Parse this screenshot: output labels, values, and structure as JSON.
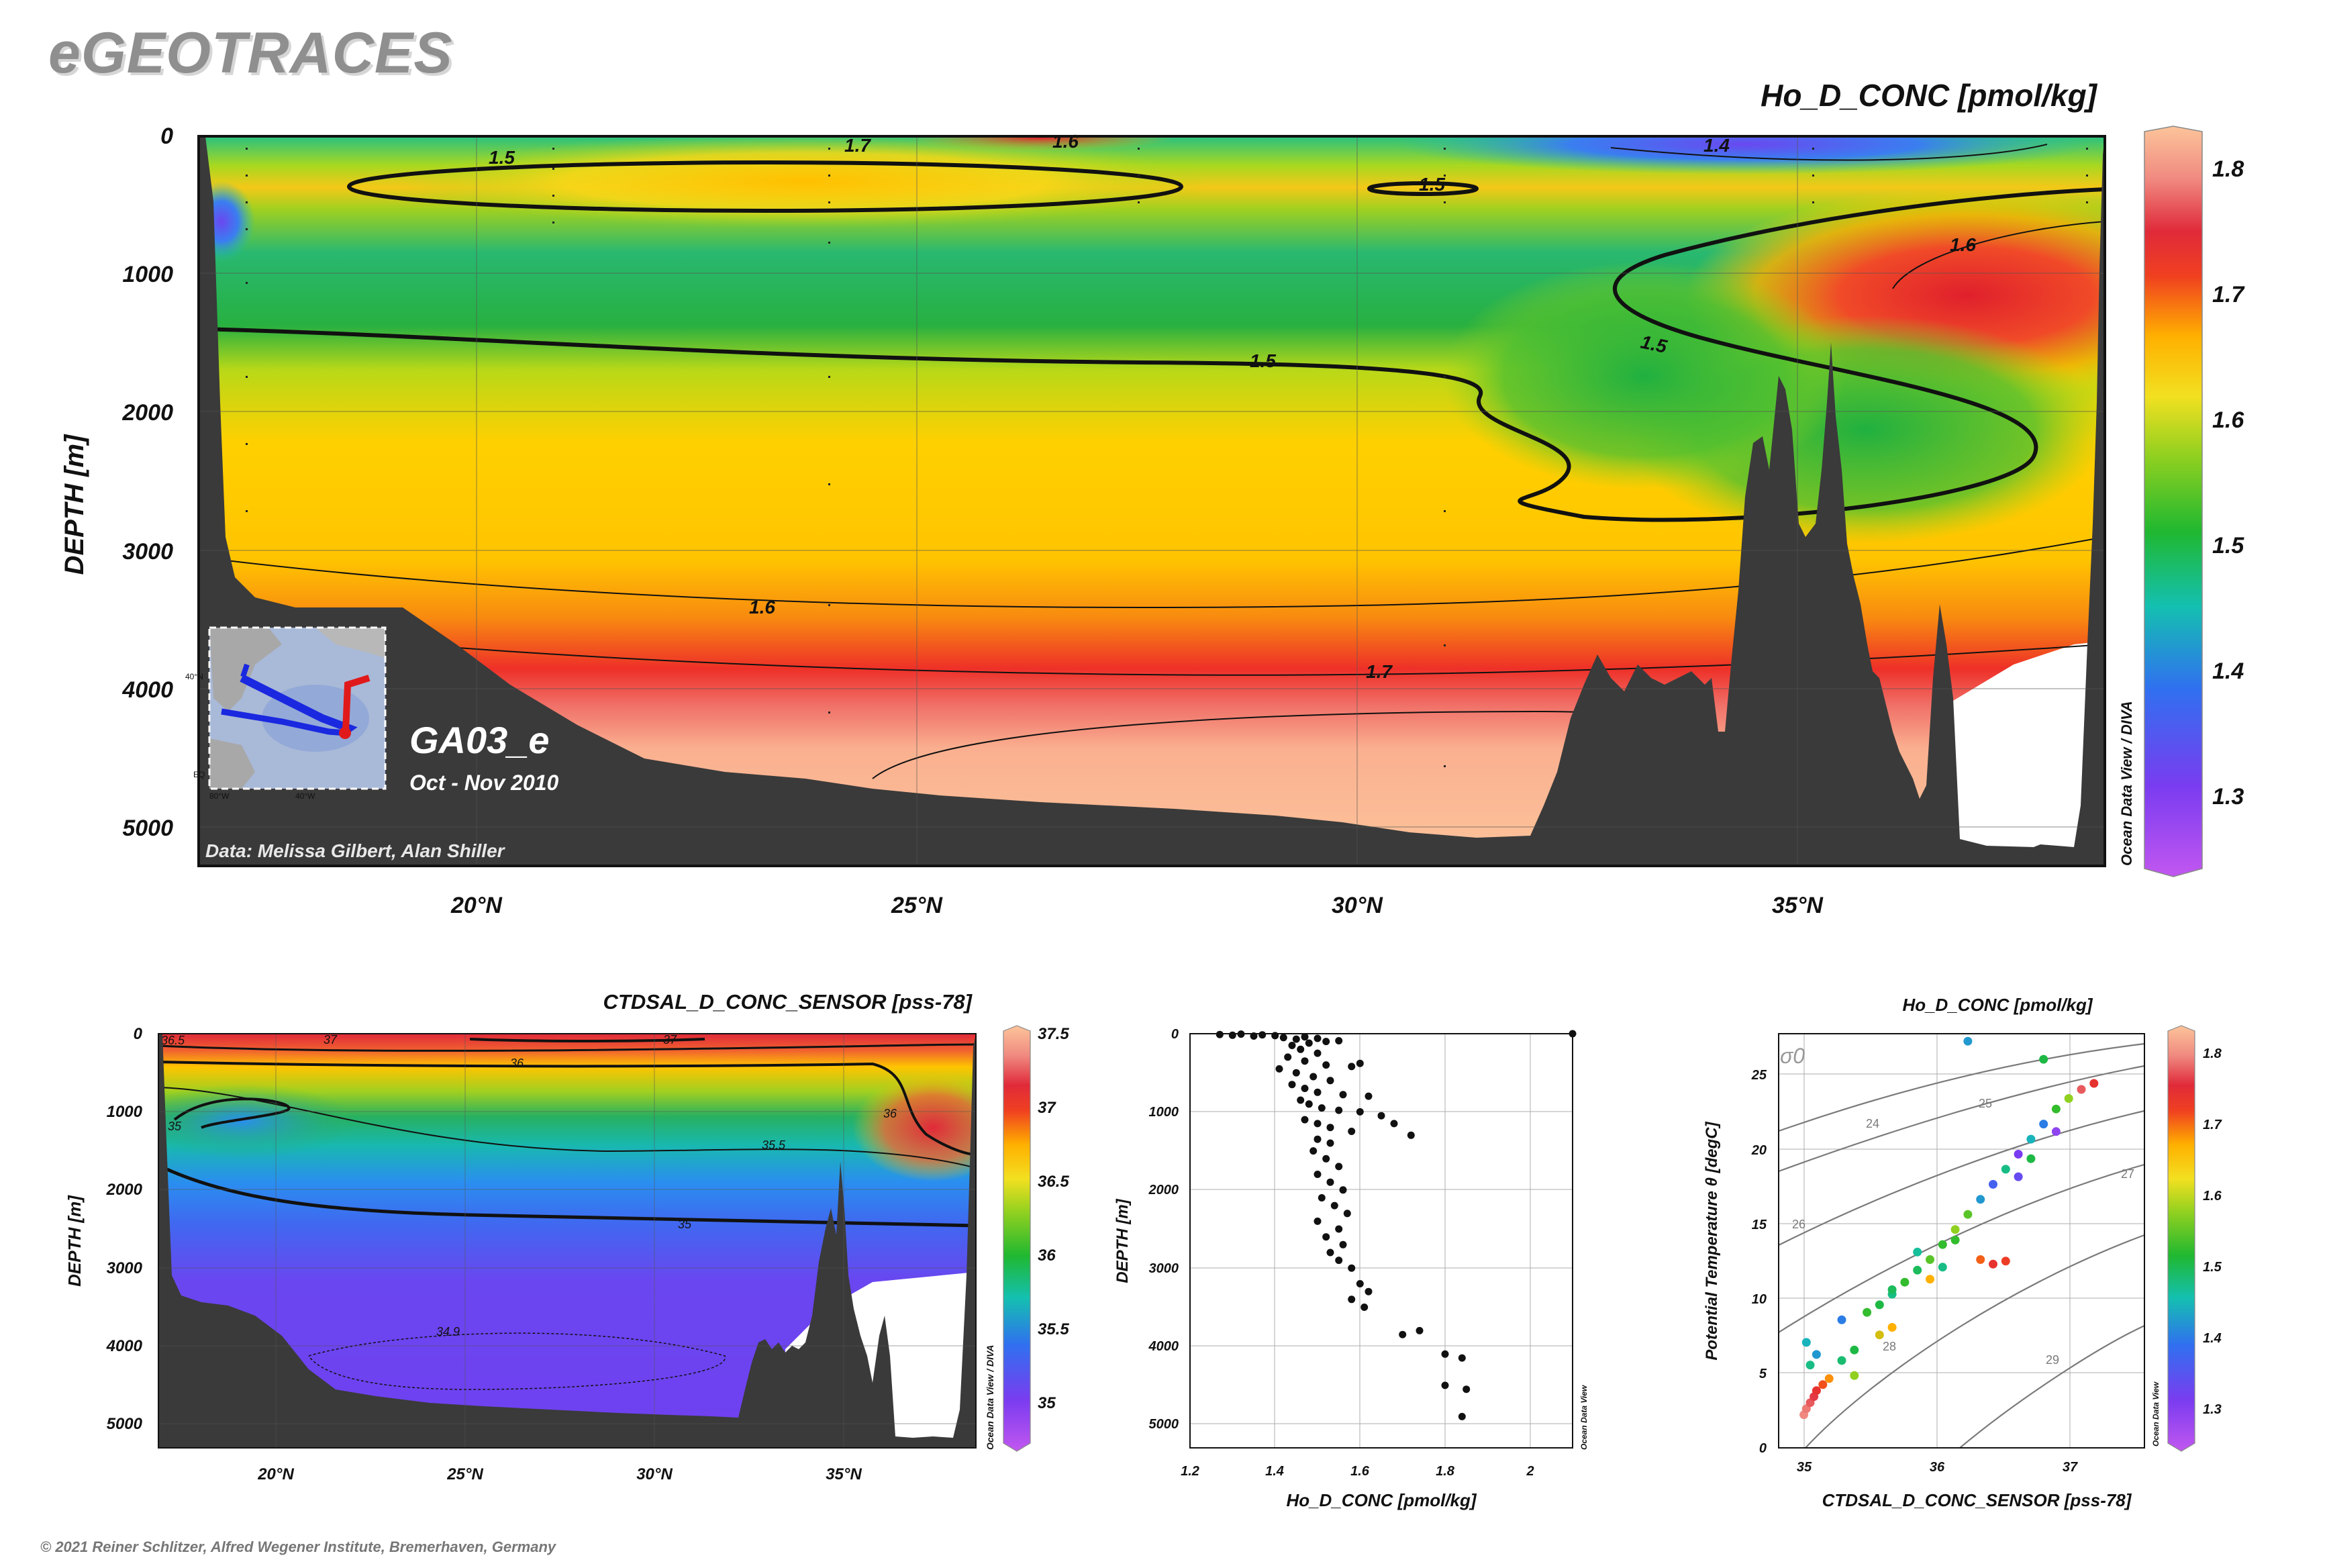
{
  "branding": {
    "logo": "eGEOTRACES",
    "copyright": "© 2021 Reiner Schlitzer, Alfred Wegener Institute, Bremerhaven, Germany"
  },
  "main_section": {
    "variable_label": "Ho_D_CONC [pmol/kg]",
    "ylabel": "DEPTH [m]",
    "y_ticks": [
      "0",
      "1000",
      "2000",
      "3000",
      "4000",
      "5000"
    ],
    "x_ticks": [
      "20°N",
      "25°N",
      "30°N",
      "35°N"
    ],
    "cruise": "GA03_e",
    "dates": "Oct - Nov 2010",
    "credit": "Data: Melissa Gilbert, Alan Shiller",
    "odv_credit": "Ocean Data View / DIVA",
    "colorbar_ticks": [
      "1.8",
      "1.7",
      "1.6",
      "1.5",
      "1.4",
      "1.3"
    ],
    "contour_labels": [
      "1.5",
      "1.7",
      "1.6",
      "1.4",
      "1.5",
      "1.6",
      "1.5",
      "1.5",
      "1.6",
      "1.7"
    ],
    "map_labels": {
      "lat": "40°N",
      "lat2": "EQ",
      "lon1": "80°W",
      "lon2": "40°W"
    }
  },
  "sal_section": {
    "variable_label": "CTDSAL_D_CONC_SENSOR [pss-78]",
    "ylabel": "DEPTH [m]",
    "y_ticks": [
      "0",
      "1000",
      "2000",
      "3000",
      "4000",
      "5000"
    ],
    "x_ticks": [
      "20°N",
      "25°N",
      "30°N",
      "35°N"
    ],
    "colorbar_ticks": [
      "37.5",
      "37",
      "36.5",
      "36",
      "35.5",
      "35"
    ],
    "contour_labels": [
      "36.5",
      "37",
      "37",
      "36",
      "36",
      "35",
      "35.5",
      "35",
      "34.9"
    ],
    "odv_credit": "Ocean Data View / DIVA"
  },
  "profile_plot": {
    "xlabel": "Ho_D_CONC [pmol/kg]",
    "ylabel": "DEPTH [m]",
    "x_ticks": [
      "1.2",
      "1.4",
      "1.6",
      "1.8",
      "2"
    ],
    "y_ticks": [
      "0",
      "1000",
      "2000",
      "3000",
      "4000",
      "5000"
    ],
    "odv_credit": "Ocean Data View"
  },
  "ts_plot": {
    "title": "Ho_D_CONC [pmol/kg]",
    "xlabel": "CTDSAL_D_CONC_SENSOR [pss-78]",
    "ylabel": "Potential Temperature θ [degC]",
    "x_ticks": [
      "35",
      "36",
      "37"
    ],
    "y_ticks": [
      "0",
      "5",
      "10",
      "15",
      "20",
      "25"
    ],
    "sigma_label": "σ0",
    "isopycnal_labels": [
      "24",
      "25",
      "26",
      "27",
      "28",
      "29"
    ],
    "colorbar_ticks": [
      "1.8",
      "1.7",
      "1.6",
      "1.5",
      "1.4",
      "1.3"
    ],
    "odv_credit": "Ocean Data View"
  },
  "chart_data": [
    {
      "type": "heatmap",
      "title": "Ho_D_CONC [pmol/kg]",
      "xlabel": "",
      "ylabel": "DEPTH [m]",
      "xlim": [
        16.8,
        38.5
      ],
      "ylim": [
        5300,
        0
      ],
      "colorbar_range": [
        1.23,
        1.83
      ],
      "contour_levels": [
        1.4,
        1.5,
        1.6,
        1.7
      ],
      "description_levels": [
        {
          "depth": 0,
          "value": 1.35
        },
        {
          "depth": 200,
          "value": 1.5
        },
        {
          "depth": 800,
          "value": 1.43
        },
        {
          "depth": 1500,
          "value": 1.47
        },
        {
          "depth": 2500,
          "value": 1.55
        },
        {
          "depth": 3300,
          "value": 1.6
        },
        {
          "depth": 3800,
          "value": 1.68
        },
        {
          "depth": 4500,
          "value": 1.79
        }
      ],
      "station_latitudes": [
        17.5,
        21,
        24,
        27.5,
        31,
        35.2,
        38.2
      ]
    },
    {
      "type": "heatmap",
      "title": "CTDSAL_D_CONC_SENSOR [pss-78]",
      "xlabel": "",
      "ylabel": "DEPTH [m]",
      "xlim": [
        16.8,
        38.5
      ],
      "ylim": [
        5300,
        0
      ],
      "colorbar_range": [
        34.8,
        37.5
      ],
      "contour_levels": [
        34.9,
        35,
        35.5,
        36,
        36.5,
        37
      ]
    },
    {
      "type": "scatter",
      "xlabel": "Ho_D_CONC [pmol/kg]",
      "ylabel": "DEPTH [m]",
      "xlim": [
        1.2,
        2.1
      ],
      "ylim": [
        5300,
        0
      ],
      "points": [
        [
          1.27,
          10
        ],
        [
          1.3,
          20
        ],
        [
          1.32,
          5
        ],
        [
          1.35,
          30
        ],
        [
          1.37,
          15
        ],
        [
          1.4,
          25
        ],
        [
          1.42,
          50
        ],
        [
          1.45,
          70
        ],
        [
          1.47,
          40
        ],
        [
          1.5,
          60
        ],
        [
          1.52,
          100
        ],
        [
          1.55,
          90
        ],
        [
          1.48,
          120
        ],
        [
          1.44,
          150
        ],
        [
          1.46,
          200
        ],
        [
          1.5,
          250
        ],
        [
          1.43,
          300
        ],
        [
          1.47,
          350
        ],
        [
          1.52,
          400
        ],
        [
          1.58,
          420
        ],
        [
          1.6,
          380
        ],
        [
          1.41,
          450
        ],
        [
          1.45,
          500
        ],
        [
          1.49,
          550
        ],
        [
          1.53,
          600
        ],
        [
          1.44,
          650
        ],
        [
          1.47,
          700
        ],
        [
          1.5,
          750
        ],
        [
          1.56,
          780
        ],
        [
          1.62,
          800
        ],
        [
          1.46,
          850
        ],
        [
          1.48,
          900
        ],
        [
          1.51,
          950
        ],
        [
          1.55,
          980
        ],
        [
          1.6,
          1000
        ],
        [
          1.65,
          1050
        ],
        [
          1.47,
          1100
        ],
        [
          1.5,
          1150
        ],
        [
          1.53,
          1200
        ],
        [
          1.58,
          1250
        ],
        [
          1.68,
          1150
        ],
        [
          1.72,
          1300
        ],
        [
          1.5,
          1350
        ],
        [
          1.53,
          1400
        ],
        [
          1.49,
          1500
        ],
        [
          1.52,
          1600
        ],
        [
          1.55,
          1700
        ],
        [
          1.5,
          1800
        ],
        [
          1.53,
          1900
        ],
        [
          1.56,
          2000
        ],
        [
          1.51,
          2100
        ],
        [
          1.54,
          2200
        ],
        [
          1.57,
          2300
        ],
        [
          1.5,
          2400
        ],
        [
          1.55,
          2500
        ],
        [
          1.52,
          2600
        ],
        [
          1.56,
          2700
        ],
        [
          1.53,
          2800
        ],
        [
          1.55,
          2900
        ],
        [
          1.58,
          3000
        ],
        [
          1.6,
          3200
        ],
        [
          1.62,
          3300
        ],
        [
          1.58,
          3400
        ],
        [
          1.61,
          3500
        ],
        [
          1.7,
          3850
        ],
        [
          1.74,
          3800
        ],
        [
          1.8,
          4100
        ],
        [
          1.84,
          4150
        ],
        [
          1.8,
          4500
        ],
        [
          1.85,
          4550
        ],
        [
          1.84,
          4900
        ],
        [
          2.1,
          0
        ]
      ]
    },
    {
      "type": "scatter",
      "xlabel": "CTDSAL_D_CONC_SENSOR [pss-78]",
      "ylabel": "Potential Temperature θ [degC]",
      "xlim": [
        34.7,
        37.6
      ],
      "ylim": [
        0,
        27.5
      ],
      "colorbar_range": [
        1.23,
        1.83
      ],
      "points": [
        [
          34.9,
          2.2,
          1.78
        ],
        [
          34.92,
          2.6,
          1.77
        ],
        [
          34.95,
          3.0,
          1.75
        ],
        [
          34.98,
          3.4,
          1.73
        ],
        [
          35.0,
          3.8,
          1.7
        ],
        [
          35.05,
          4.2,
          1.66
        ],
        [
          35.1,
          4.6,
          1.62
        ],
        [
          34.95,
          5.5,
          1.45
        ],
        [
          35.0,
          6.2,
          1.4
        ],
        [
          34.92,
          7.0,
          1.42
        ],
        [
          35.2,
          5.8,
          1.46
        ],
        [
          35.3,
          6.5,
          1.48
        ],
        [
          35.2,
          8.5,
          1.38
        ],
        [
          35.4,
          9.0,
          1.5
        ],
        [
          35.5,
          9.5,
          1.48
        ],
        [
          35.6,
          10.2,
          1.45
        ],
        [
          35.7,
          11.0,
          1.5
        ],
        [
          35.8,
          11.8,
          1.47
        ],
        [
          35.9,
          12.5,
          1.52
        ],
        [
          36.0,
          13.5,
          1.5
        ],
        [
          35.8,
          13.0,
          1.44
        ],
        [
          36.1,
          14.5,
          1.55
        ],
        [
          36.2,
          15.5,
          1.52
        ],
        [
          36.3,
          16.5,
          1.4
        ],
        [
          36.4,
          17.5,
          1.35
        ],
        [
          36.5,
          18.5,
          1.45
        ],
        [
          36.6,
          19.5,
          1.3
        ],
        [
          36.7,
          20.5,
          1.42
        ],
        [
          36.8,
          21.5,
          1.38
        ],
        [
          36.9,
          22.5,
          1.5
        ],
        [
          37.0,
          23.2,
          1.55
        ],
        [
          37.2,
          24.2,
          1.7
        ],
        [
          36.8,
          25.8,
          1.48
        ],
        [
          36.2,
          27.0,
          1.4
        ],
        [
          36.3,
          12.5,
          1.65
        ],
        [
          36.4,
          12.2,
          1.7
        ],
        [
          36.5,
          12.4,
          1.68
        ],
        [
          35.5,
          7.5,
          1.58
        ],
        [
          35.6,
          8.0,
          1.6
        ],
        [
          35.3,
          4.8,
          1.55
        ],
        [
          35.6,
          10.5,
          1.47
        ],
        [
          35.9,
          11.2,
          1.6
        ],
        [
          36.0,
          12.0,
          1.45
        ],
        [
          36.1,
          13.8,
          1.5
        ],
        [
          36.6,
          18.0,
          1.32
        ],
        [
          36.7,
          19.2,
          1.48
        ],
        [
          36.9,
          21.0,
          1.28
        ],
        [
          37.1,
          23.8,
          1.75
        ]
      ]
    }
  ]
}
